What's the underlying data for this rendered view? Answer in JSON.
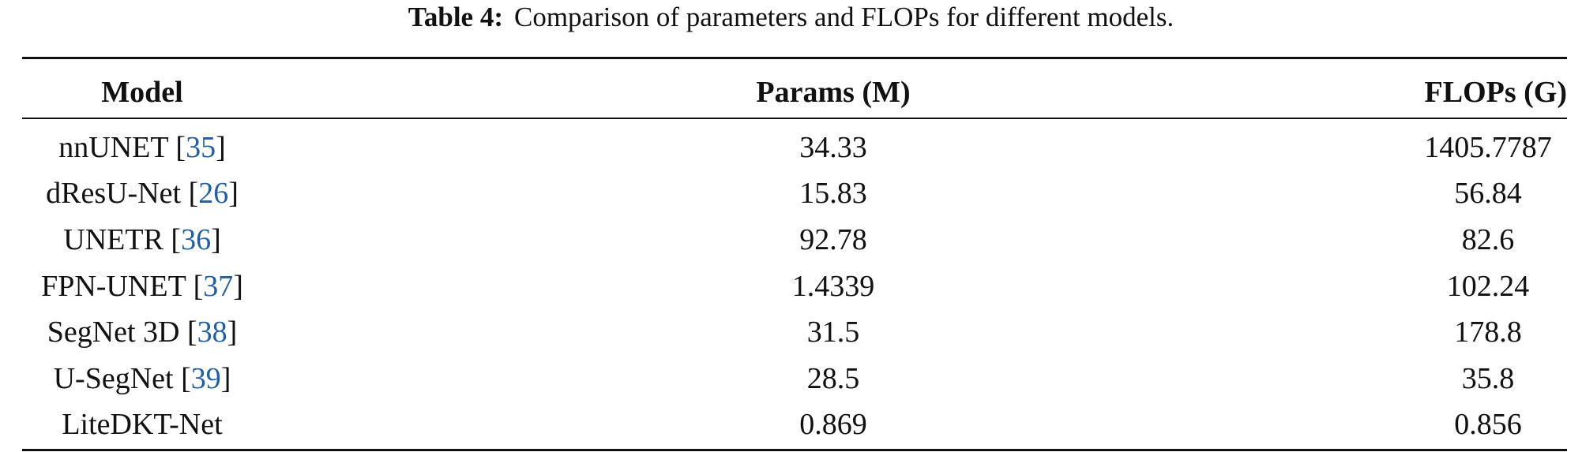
{
  "caption": {
    "label": "Table 4:",
    "text": "Comparison of parameters and FLOPs for different models."
  },
  "table": {
    "header": [
      "Model",
      "Params (M)",
      "FLOPs (G)"
    ],
    "rows": [
      [
        [
          "nnUNET [",
          "35",
          "]"
        ],
        34.33,
        1405.7787
      ],
      [
        [
          "dResU-Net [",
          "26",
          "]"
        ],
        15.83,
        56.84
      ],
      [
        [
          "UNETR [",
          "36",
          "]"
        ],
        92.78,
        82.6
      ],
      [
        [
          "FPN-UNET [",
          "37",
          "]"
        ],
        1.4339,
        102.24
      ],
      [
        [
          "SegNet 3D [",
          "38",
          "]"
        ],
        31.5,
        178.8
      ],
      [
        [
          "U-SegNet [",
          "39",
          "]"
        ],
        28.5,
        35.8
      ],
      [
        [
          "LiteDKT-Net"
        ],
        0.869,
        0.856
      ]
    ]
  }
}
